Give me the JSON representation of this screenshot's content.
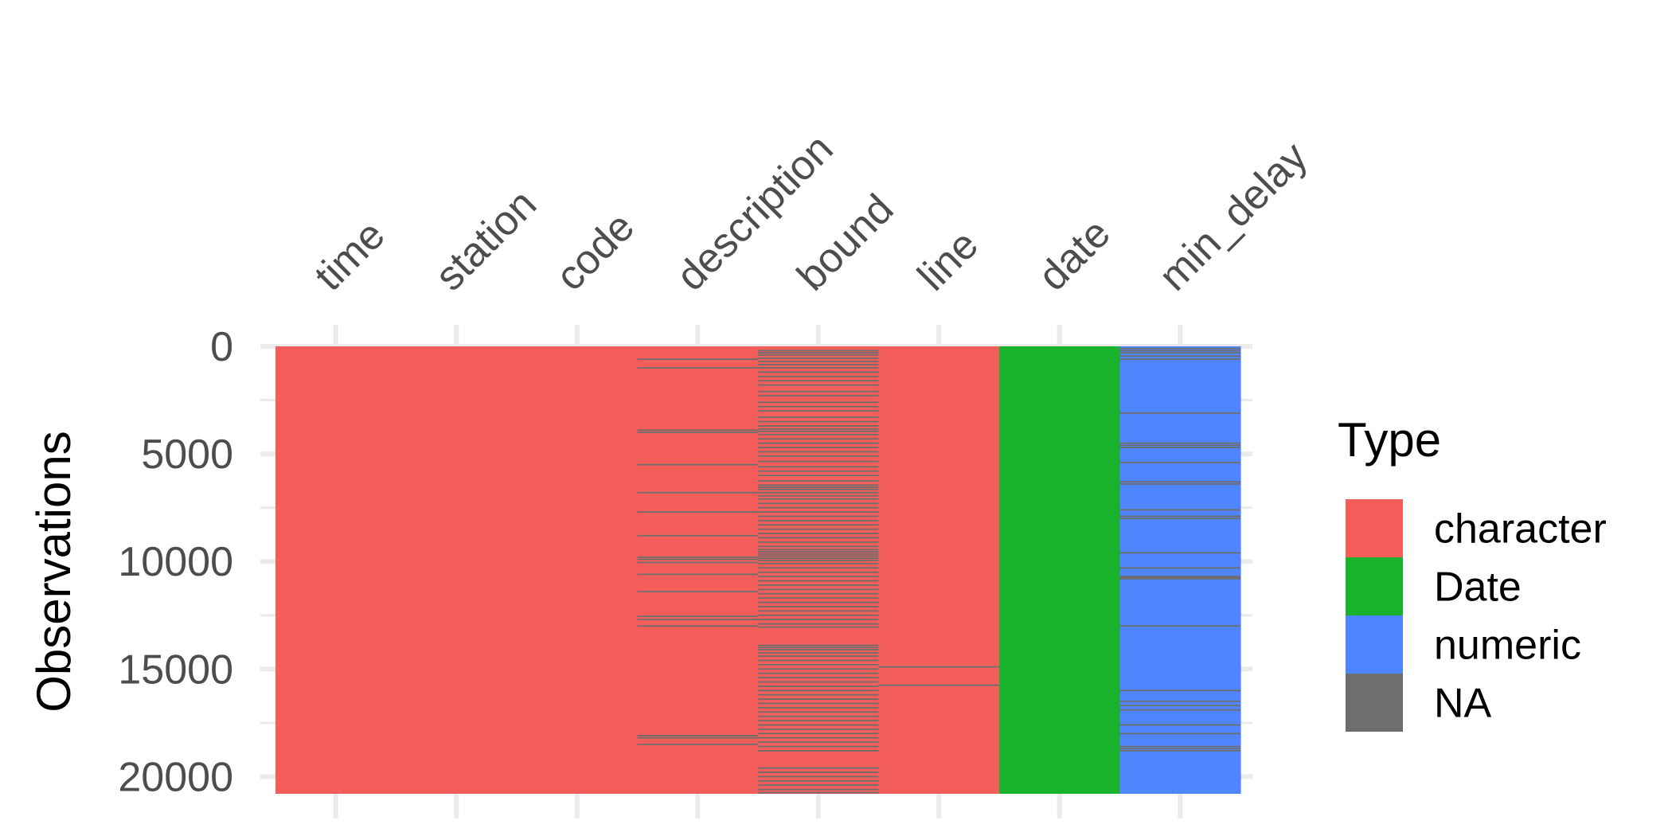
{
  "chart_data": {
    "type": "heatmap",
    "title": "",
    "xlabel": "",
    "ylabel": "Observations",
    "columns": [
      "time",
      "station",
      "code",
      "description",
      "bound",
      "line",
      "date",
      "min_delay"
    ],
    "column_types": [
      "character",
      "character",
      "character",
      "character",
      "character",
      "character",
      "Date",
      "numeric"
    ],
    "n_observations": 20800,
    "ylim": [
      0,
      20800
    ],
    "y_reversed": true,
    "y_ticks": [
      0,
      5000,
      10000,
      15000,
      20000
    ],
    "y_tick_labels": [
      "0",
      "5000",
      "10000",
      "15000",
      "20000"
    ],
    "grid": true,
    "legend": {
      "title": "Type",
      "placement": "right",
      "entries": [
        {
          "label": "character",
          "color": "#F35E5A"
        },
        {
          "label": "Date",
          "color": "#18B22D"
        },
        {
          "label": "numeric",
          "color": "#4F86FF"
        },
        {
          "label": "NA",
          "color": "#6E6E6E"
        }
      ]
    },
    "type_colors": {
      "character": "#F35E5A",
      "Date": "#18B22D",
      "numeric": "#4F86FF",
      "NA": "#6E6E6E"
    },
    "missing_rows": {
      "description": [
        600,
        1000,
        3900,
        4000,
        5500,
        6800,
        7700,
        8800,
        9800,
        9900,
        10050,
        10600,
        11400,
        12550,
        12700,
        13000,
        18100,
        18200,
        18500
      ],
      "bound": [
        200,
        300,
        400,
        550,
        700,
        850,
        1000,
        1200,
        1400,
        1600,
        1800,
        2100,
        2300,
        2600,
        2800,
        3000,
        3300,
        3500,
        3700,
        3850,
        3950,
        4100,
        4300,
        4500,
        4700,
        4900,
        5100,
        5350,
        5600,
        5800,
        6000,
        6250,
        6450,
        6550,
        6650,
        6800,
        6950,
        7100,
        7300,
        7500,
        7700,
        7900,
        8100,
        8300,
        8500,
        8700,
        8900,
        9100,
        9300,
        9450,
        9550,
        9650,
        9750,
        9850,
        9950,
        10100,
        10300,
        10500,
        10700,
        10900,
        11100,
        11300,
        11500,
        11700,
        11900,
        12100,
        12300,
        12500,
        12700,
        12900,
        13050,
        13900,
        14000,
        14100,
        14250,
        14400,
        14600,
        14800,
        15000,
        15200,
        15400,
        15600,
        15800,
        16000,
        16200,
        16400,
        16600,
        16800,
        17000,
        17200,
        17400,
        17600,
        17800,
        18000,
        18200,
        18400,
        18600,
        18800,
        19600,
        19800,
        20000,
        20200,
        20400,
        20600,
        20750
      ],
      "line": [
        14900,
        15750
      ],
      "min_delay": [
        100,
        200,
        300,
        450,
        600,
        3100,
        4500,
        4600,
        4700,
        5400,
        6300,
        6400,
        7600,
        7900,
        8000,
        9600,
        10300,
        10700,
        10750,
        10800,
        13000,
        16000,
        16500,
        16700,
        16900,
        17600,
        18000,
        18600,
        18700,
        18800
      ]
    }
  }
}
